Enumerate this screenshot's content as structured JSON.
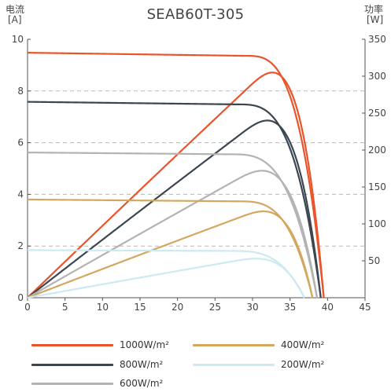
{
  "chart_data": {
    "type": "line",
    "title": "SEAB60T-305",
    "left_axis": {
      "label_top": "电流",
      "label_unit": "[A]",
      "range": [
        0,
        10
      ],
      "ticks": [
        0,
        2,
        4,
        6,
        8,
        10
      ]
    },
    "right_axis": {
      "label_top": "功率",
      "label_unit": "[W]",
      "range": [
        0,
        350
      ],
      "ticks": [
        50,
        100,
        150,
        200,
        250,
        300,
        350
      ]
    },
    "x_axis": {
      "range": [
        0,
        45
      ],
      "ticks": [
        0,
        5,
        10,
        15,
        20,
        25,
        30,
        35,
        40,
        45
      ]
    },
    "grid": "dashed horizontal",
    "series": [
      {
        "name": "1000W/m²",
        "color": "#e9542b",
        "isc": 9.48,
        "voc": 39.5,
        "vmp": 33.4,
        "imp": 9.13,
        "pmax": 305,
        "knee": 29,
        "sag": 0.12
      },
      {
        "name": "800W/m²",
        "color": "#3b4650",
        "isc": 7.58,
        "voc": 39.1,
        "vmp": 33.0,
        "imp": 7.27,
        "pmax": 240,
        "knee": 28,
        "sag": 0.1
      },
      {
        "name": "600W/m²",
        "color": "#b3b3b3",
        "isc": 5.62,
        "voc": 38.6,
        "vmp": 32.3,
        "imp": 5.32,
        "pmax": 172,
        "knee": 27,
        "sag": 0.07
      },
      {
        "name": "400W/m²",
        "color": "#d4a760",
        "isc": 3.8,
        "voc": 38.0,
        "vmp": 32.5,
        "imp": 3.6,
        "pmax": 117,
        "knee": 28,
        "sag": 0.07
      },
      {
        "name": "200W/m²",
        "color": "#cde9f2",
        "isc": 1.84,
        "voc": 36.9,
        "vmp": 31.0,
        "imp": 1.72,
        "pmax": 53,
        "knee": 27,
        "sag": 0.03
      }
    ]
  }
}
